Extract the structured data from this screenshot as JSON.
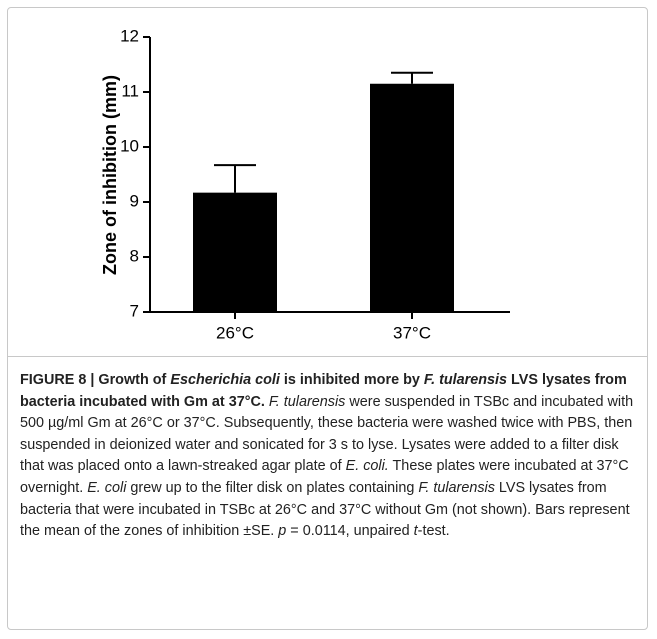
{
  "chart_data": {
    "type": "bar",
    "ylabel": "Zone of inhibition  (mm)",
    "categories": [
      "26°C",
      "37°C"
    ],
    "values": [
      9.17,
      11.15
    ],
    "errors": [
      0.5,
      0.2
    ],
    "color": "#000000",
    "ylim": [
      7,
      12
    ],
    "yticks": [
      7,
      8,
      9,
      10,
      11,
      12
    ]
  },
  "caption": {
    "runs": [
      {
        "text": "FIGURE 8 | Growth of ",
        "style": "bold"
      },
      {
        "text": "Escherichia coli",
        "style": "bold-italic"
      },
      {
        "text": " is inhibited more by ",
        "style": "bold"
      },
      {
        "text": "F. tularensis",
        "style": "bold-italic"
      },
      {
        "text": " LVS lysates from bacteria incubated with Gm at 37°C. ",
        "style": "bold"
      },
      {
        "text": "F. tularensis",
        "style": "italic"
      },
      {
        "text": " were suspended in TSBc and incubated with 500 µg/ml Gm at 26°C or 37°C. Subsequently, these bacteria were washed twice with PBS, then suspended in deionized water and sonicated for 3 s to lyse. Lysates were added to a filter disk that was placed onto a lawn-streaked agar plate of ",
        "style": "normal"
      },
      {
        "text": "E. coli.",
        "style": "italic"
      },
      {
        "text": " These plates were incubated at 37°C overnight. ",
        "style": "normal"
      },
      {
        "text": "E. coli",
        "style": "italic"
      },
      {
        "text": " grew up to the filter disk on plates containing ",
        "style": "normal"
      },
      {
        "text": "F. tularensis",
        "style": "italic"
      },
      {
        "text": " LVS lysates from bacteria that were incubated in TSBc at 26°C and 37°C without Gm (not shown). Bars represent the mean of the zones of inhibition ±SE. ",
        "style": "normal"
      },
      {
        "text": "p",
        "style": "italic"
      },
      {
        "text": " = 0.0114, unpaired ",
        "style": "normal"
      },
      {
        "text": "t",
        "style": "italic"
      },
      {
        "text": "-test.",
        "style": "normal"
      }
    ]
  }
}
